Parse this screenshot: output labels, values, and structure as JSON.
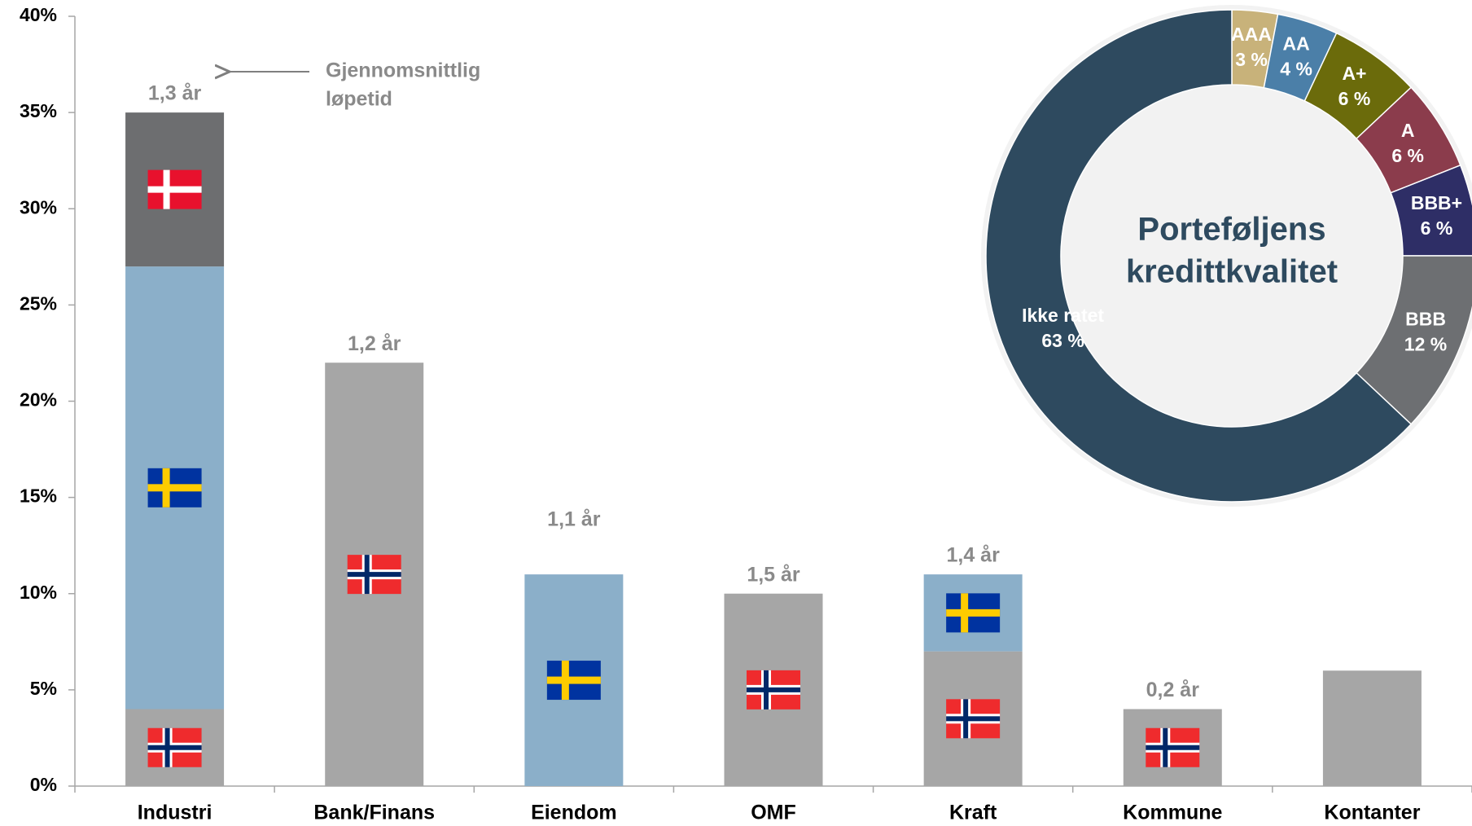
{
  "chart_data": [
    {
      "type": "bar",
      "stacked": true,
      "categories": [
        "Industri",
        "Bank/Finans",
        "Eiendom",
        "OMF",
        "Kraft",
        "Kommune",
        "Kontanter"
      ],
      "series": [
        {
          "color": "#a6a6a6",
          "flag": "no",
          "values": [
            4,
            22,
            null,
            10,
            7,
            4,
            null
          ]
        },
        {
          "color": "#8bafc9",
          "flag": "se",
          "values": [
            23,
            null,
            11,
            null,
            4,
            null,
            null
          ]
        },
        {
          "color": "#6d6e70",
          "flag": "dk",
          "values": [
            8,
            null,
            null,
            null,
            null,
            null,
            null
          ]
        },
        {
          "color": "#a6a6a6",
          "values": [
            null,
            null,
            null,
            null,
            null,
            null,
            6
          ]
        }
      ],
      "bar_labels": [
        "1,3 år",
        "1,2 år",
        "1,1 år",
        "1,5 år",
        "1,4 år",
        "0,2 år",
        null
      ],
      "annotation": [
        "Gjennomsnittlig",
        "løpetid"
      ],
      "ylim": [
        0,
        40
      ],
      "yticks": [
        {
          "value": 0,
          "label": "0%"
        },
        {
          "value": 5,
          "label": "5%"
        },
        {
          "value": 10,
          "label": "10%"
        },
        {
          "value": 15,
          "label": "15%"
        },
        {
          "value": 20,
          "label": "20%"
        },
        {
          "value": 25,
          "label": "25%"
        },
        {
          "value": 30,
          "label": "30%"
        },
        {
          "value": 35,
          "label": "35%"
        },
        {
          "value": 40,
          "label": "40%"
        }
      ]
    },
    {
      "type": "pie",
      "donut": true,
      "title": [
        "Porteføljens",
        "kredittkvalitet"
      ],
      "categories": [
        "AAA",
        "AA",
        "A+",
        "A",
        "BBB+",
        "BBB",
        "Ikke ratet"
      ],
      "values": [
        3,
        4,
        6,
        6,
        6,
        12,
        63
      ],
      "value_labels": [
        "3 %",
        "4 %",
        "6 %",
        "6 %",
        "6 %",
        "12 %",
        "63 %"
      ],
      "colors": [
        "#c8b27a",
        "#4b7fa8",
        "#6b6b0b",
        "#8b3c4c",
        "#2e2e66",
        "#6d6f72",
        "#2e4a5f"
      ]
    }
  ]
}
